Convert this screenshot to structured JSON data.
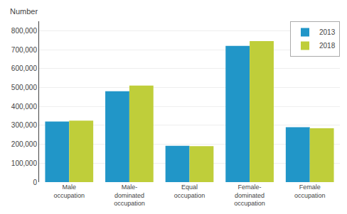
{
  "chart_data": {
    "type": "bar",
    "ylabel": "Number",
    "categories": [
      "Male\noccupation",
      "Male-\ndominated\noccupation",
      "Equal\noccupation",
      "Female-\ndominated\noccupation",
      "Female\noccupation"
    ],
    "series": [
      {
        "name": "2013",
        "color": "#2196C8",
        "values": [
          320000,
          480000,
          192000,
          720000,
          290000
        ]
      },
      {
        "name": "2018",
        "color": "#BFCE3A",
        "values": [
          325000,
          510000,
          190000,
          745000,
          285000
        ]
      }
    ],
    "ylim": [
      0,
      850000
    ],
    "yticks": [
      0,
      {
        "value": 100000,
        "label": "100,000"
      },
      {
        "value": 200000,
        "label": "200,000"
      },
      {
        "value": 300000,
        "label": "300,000"
      },
      {
        "value": 400000,
        "label": "400,000"
      },
      {
        "value": 500000,
        "label": "500,000"
      },
      {
        "value": 600000,
        "label": "600,000"
      },
      {
        "value": 700000,
        "label": "700,000"
      },
      {
        "value": 800000,
        "label": "800,000"
      }
    ],
    "grid": true,
    "legend": "upper right"
  }
}
